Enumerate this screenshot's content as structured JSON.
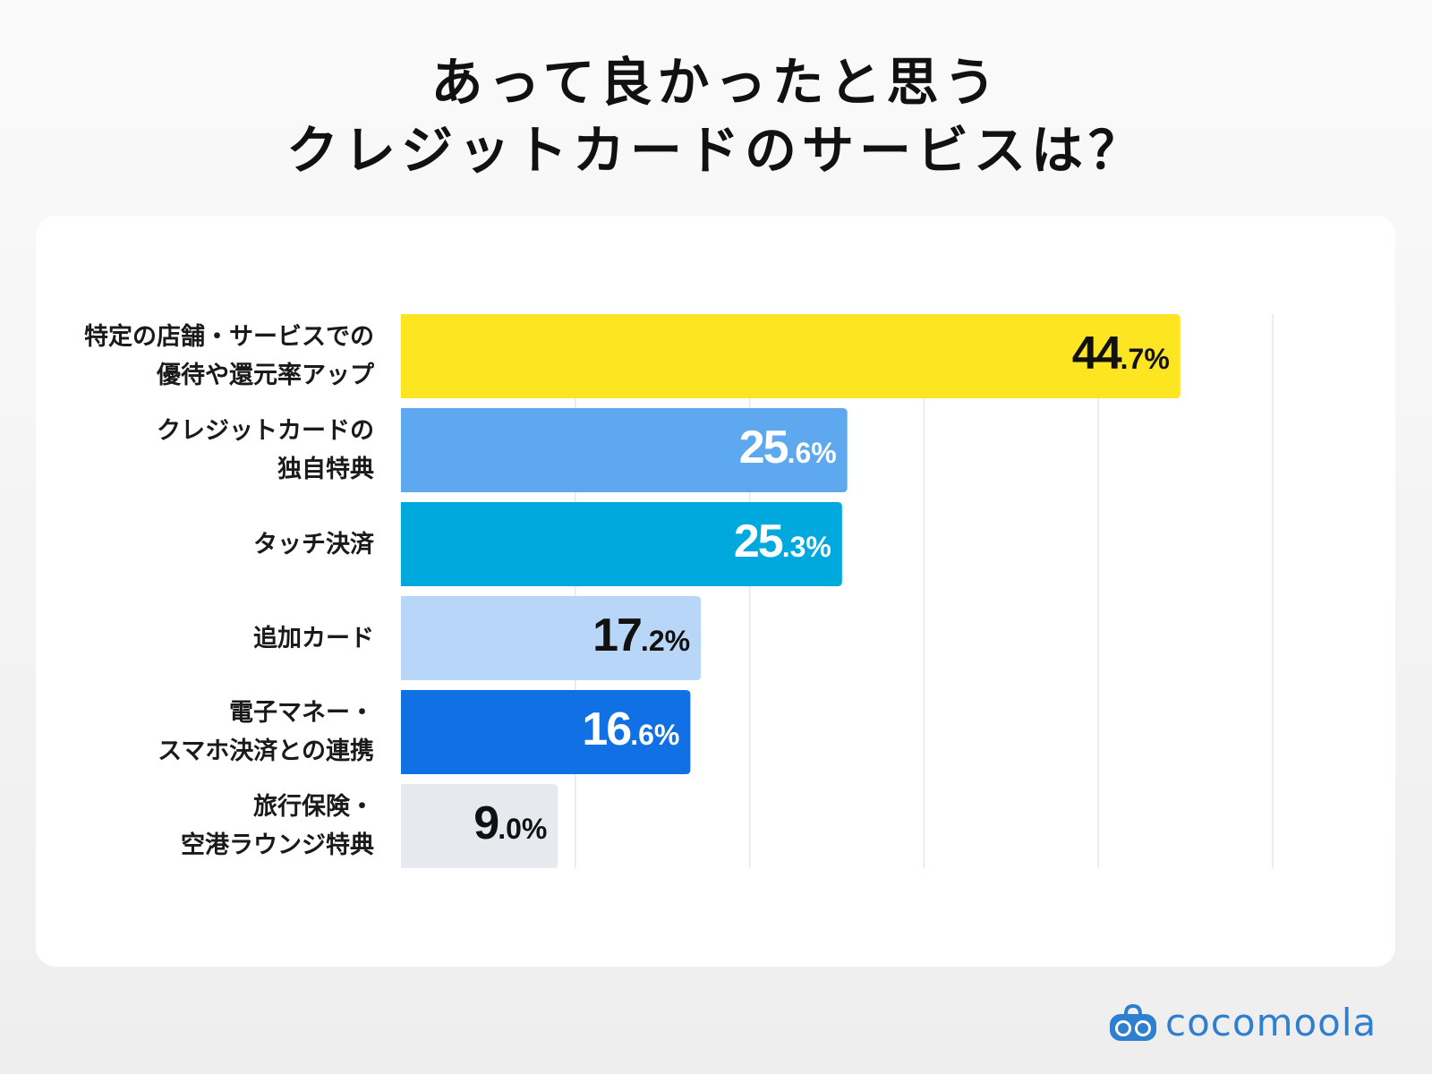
{
  "title": {
    "line1": "あって良かったと思う",
    "line2": "クレジットカードのサービスは？"
  },
  "chart_data": {
    "type": "bar",
    "orientation": "horizontal",
    "categories": [
      "特定の店舗・サービスでの\n優待や還元率アップ",
      "クレジットカードの\n独自特典",
      "タッチ決済",
      "追加カード",
      "電子マネー・\nスマホ決済との連携",
      "旅行保険・\n空港ラウンジ特典"
    ],
    "values": [
      44.7,
      25.6,
      25.3,
      17.2,
      16.6,
      9.0
    ],
    "value_labels": [
      {
        "int": "44",
        "dec": ".7%"
      },
      {
        "int": "25",
        "dec": ".6%"
      },
      {
        "int": "25",
        "dec": ".3%"
      },
      {
        "int": "17",
        "dec": ".2%"
      },
      {
        "int": "16",
        "dec": ".6%"
      },
      {
        "int": "9",
        "dec": ".0%"
      }
    ],
    "colors": [
      "#fde522",
      "#5ea8f0",
      "#00a9dd",
      "#b7d6f8",
      "#1170e3",
      "#e6e9ee"
    ],
    "label_colors": [
      "#111111",
      "#ffffff",
      "#ffffff",
      "#111111",
      "#ffffff",
      "#111111"
    ],
    "xlim": [
      0,
      50
    ],
    "grid": true,
    "grid_step": 10,
    "unit": "%"
  },
  "brand": {
    "name": "cocomoola",
    "color": "#2f7fd0"
  }
}
